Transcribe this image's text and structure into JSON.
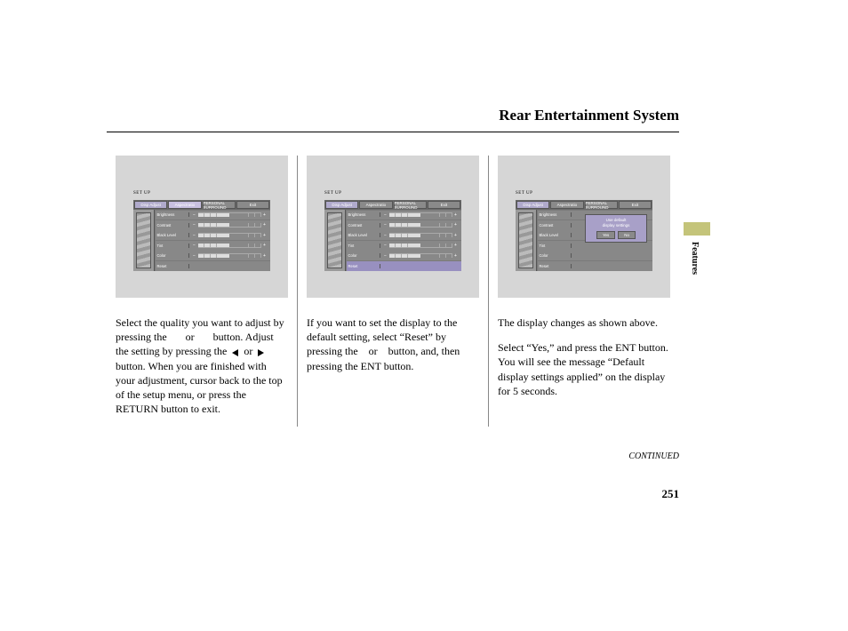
{
  "title": "Rear Entertainment System",
  "sideTab": {
    "label": "Features",
    "color": "#c4c47a"
  },
  "continued": "CONTINUED",
  "pageNumber": "251",
  "setupLabel": "SET UP",
  "tabs": [
    "Disp Adjust",
    "Aspectratio",
    "PERSONAL SURROUND",
    "Exit"
  ],
  "settingRows": [
    "Brightness",
    "Contrast",
    "Black Level",
    "Tint",
    "Color",
    "Reset"
  ],
  "slider": {
    "minus": "−",
    "plus": "+",
    "segments": 10,
    "fill": 5
  },
  "dialog": {
    "line1": "Use default",
    "line2": "display settings",
    "yes": "Yes",
    "no": "No"
  },
  "col1": {
    "text": "Select the quality you want to adjust by pressing the       or       button. Adjust the setting by pressing the      or      button. When you are finished with your adjustment, cursor back to the top of the setup menu, or press the RETURN button to exit."
  },
  "col2": {
    "text": "If you want to set the display to the default setting, select “Reset” by pressing the    or    button, and, then pressing the ENT button."
  },
  "col3": {
    "textA": "The display changes as shown above.",
    "textB": "Select “Yes,” and press the ENT button. You will see the message “Default display settings applied” on the display for 5 seconds."
  }
}
